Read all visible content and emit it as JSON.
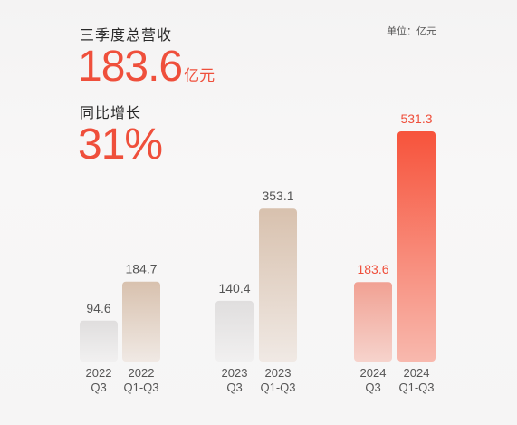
{
  "headline": {
    "revenue_label": "三季度总营收",
    "revenue_value": "183.6",
    "revenue_unit": "亿元",
    "yoy_label": "同比增长",
    "yoy_value": "31%"
  },
  "unit_note": "单位：亿元",
  "colors": {
    "accent": "#ef4f3b",
    "bar_grey": "#e2e1e1",
    "bar_tan": "#d9c3b2",
    "bar_pink": "#f1a699",
    "bar_red": "#f5533c"
  },
  "chart_data": {
    "type": "bar",
    "title": "",
    "xlabel": "",
    "ylabel": "",
    "ylim": [
      0,
      531.3
    ],
    "grid": false,
    "legend": "none",
    "categories": [
      [
        "2022",
        "Q3"
      ],
      [
        "2022",
        "Q1-Q3"
      ],
      [
        "2023",
        "Q3"
      ],
      [
        "2023",
        "Q1-Q3"
      ],
      [
        "2024",
        "Q3"
      ],
      [
        "2024",
        "Q1-Q3"
      ]
    ],
    "values": [
      94.6,
      184.7,
      140.4,
      353.1,
      183.6,
      531.3
    ],
    "value_labels": [
      "94.6",
      "184.7",
      "140.4",
      "353.1",
      "183.6",
      "531.3"
    ],
    "value_label_colors": [
      "#555555",
      "#555555",
      "#555555",
      "#555555",
      "#ef4f3b",
      "#ef4f3b"
    ],
    "bar_styles": [
      "grey",
      "tan",
      "grey",
      "tan",
      "pink",
      "red"
    ]
  }
}
